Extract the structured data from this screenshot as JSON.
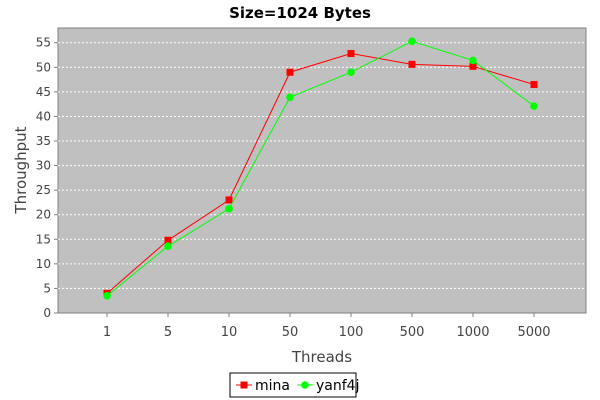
{
  "chart_data": {
    "type": "line",
    "title": "Size=1024 Bytes",
    "xlabel": "Threads",
    "ylabel": "Throughput",
    "categories": [
      "1",
      "5",
      "10",
      "50",
      "100",
      "500",
      "1000",
      "5000"
    ],
    "ylim": [
      0,
      58
    ],
    "yticks": [
      0,
      5,
      10,
      15,
      20,
      25,
      30,
      35,
      40,
      45,
      50,
      55
    ],
    "grid": true,
    "legend": "bottom",
    "plot_background": "#c0c0c0",
    "series": [
      {
        "name": "mina",
        "color": "#ff0000",
        "marker": "square",
        "values": [
          4,
          14.8,
          23,
          49,
          52.8,
          50.6,
          50.2,
          46.5
        ]
      },
      {
        "name": "yanf4j",
        "color": "#00ff00",
        "marker": "circle",
        "values": [
          3.5,
          13.6,
          21.2,
          43.9,
          49,
          55.3,
          51.4,
          42.1
        ]
      }
    ]
  }
}
